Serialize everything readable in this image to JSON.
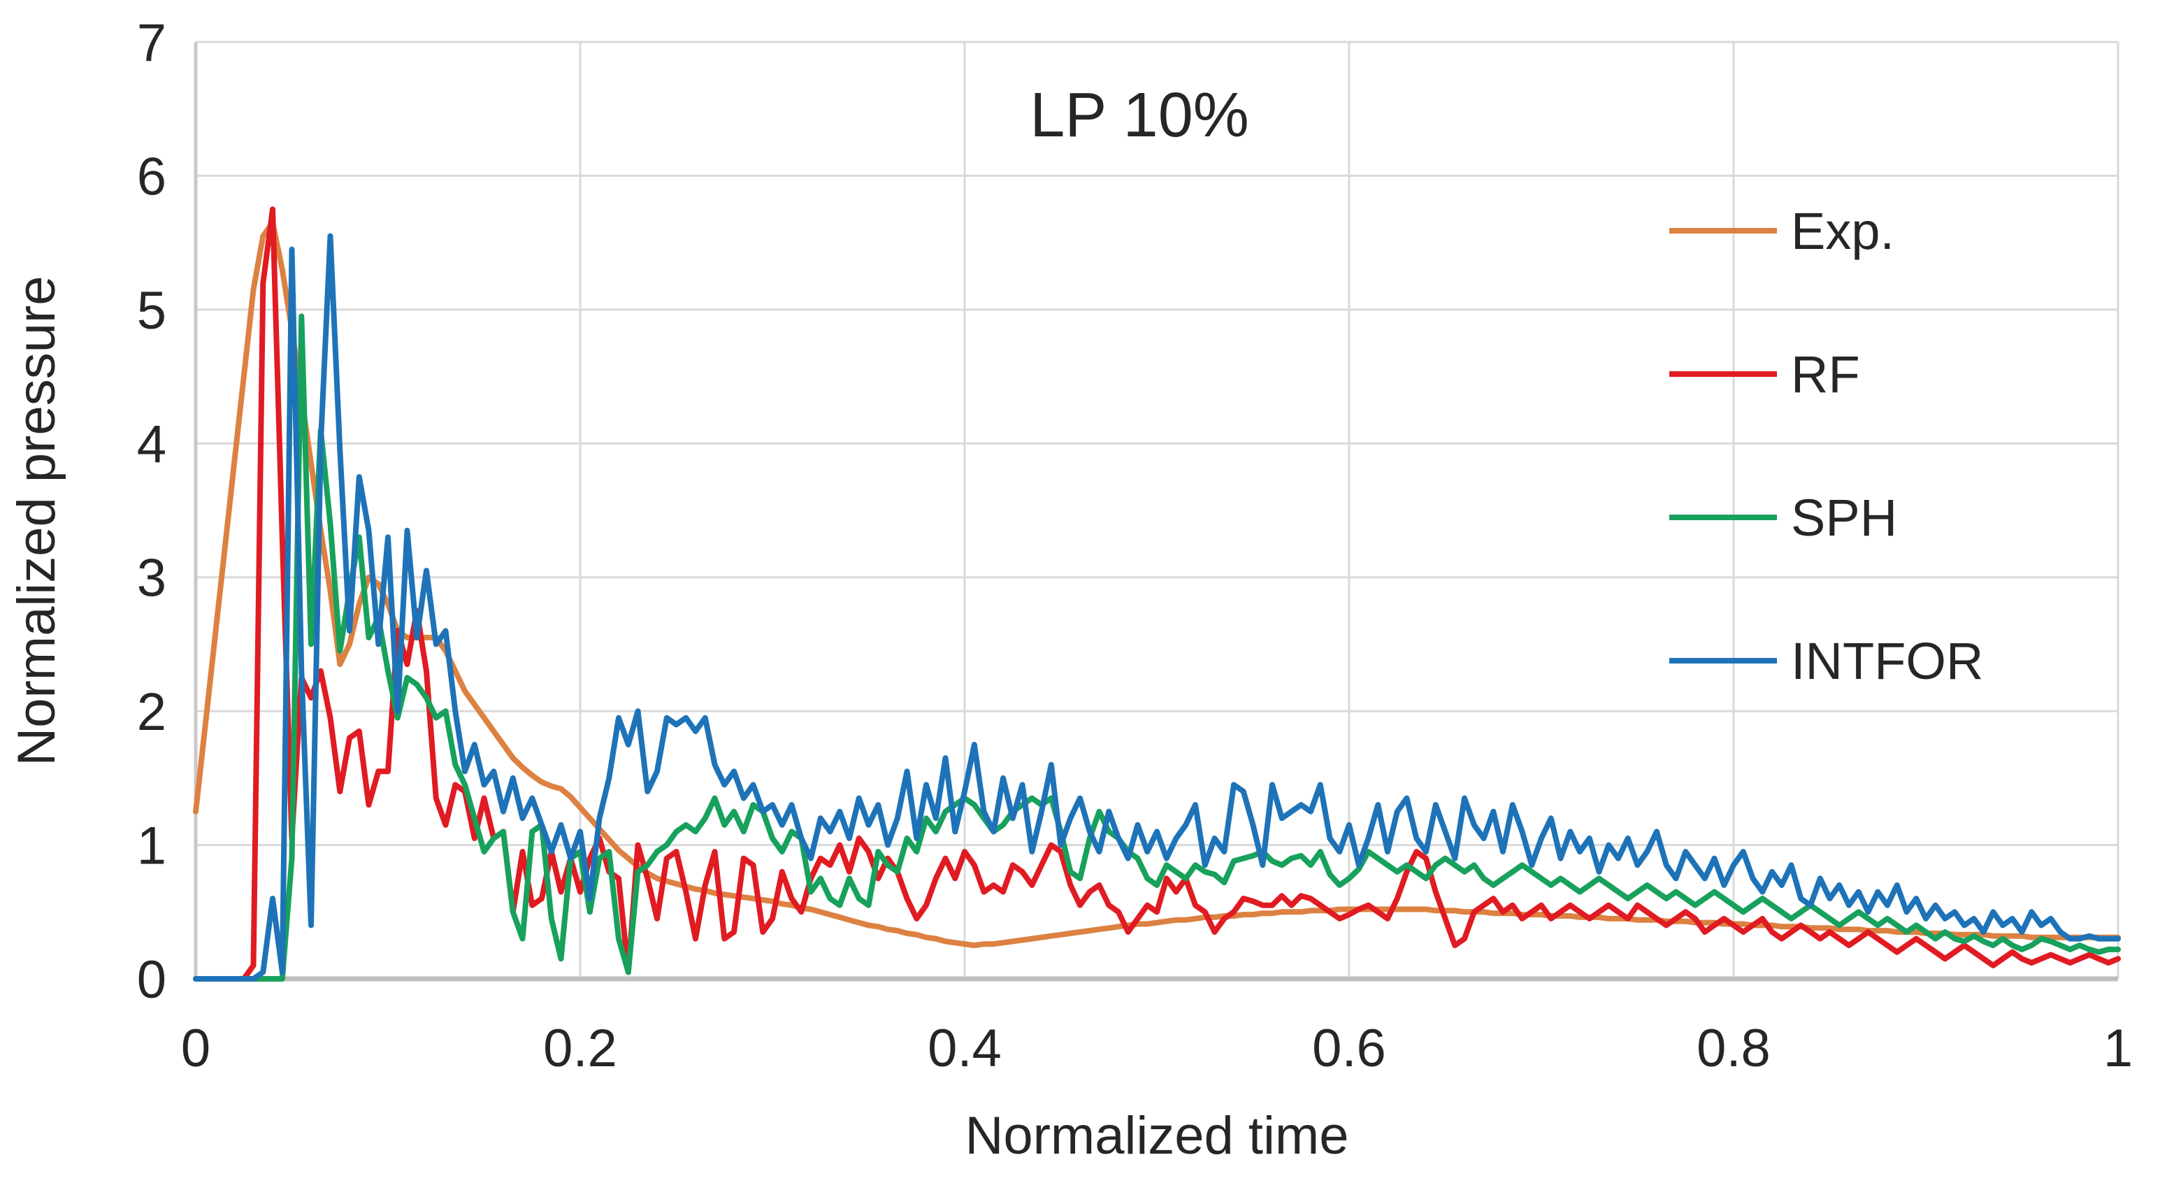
{
  "chart_data": {
    "type": "line",
    "title": "LP 10%",
    "xlabel": "Normalized time",
    "ylabel": "Normalized pressure",
    "xlim": [
      0,
      1
    ],
    "ylim": [
      0,
      7
    ],
    "x_ticks": [
      0,
      0.2,
      0.4,
      0.6,
      0.8,
      1
    ],
    "x_tick_labels": [
      "0",
      "0.2",
      "0.4",
      "0.6",
      "0.8",
      "1"
    ],
    "y_ticks": [
      0,
      1,
      2,
      3,
      4,
      5,
      6,
      7
    ],
    "y_tick_labels": [
      "0",
      "1",
      "2",
      "3",
      "4",
      "5",
      "6",
      "7"
    ],
    "grid": true,
    "legend_position": "right-inside",
    "x0": 0,
    "dx": 0.005,
    "series": [
      {
        "name": "Exp.",
        "color": "#dc8142",
        "y": [
          1.25,
          1.9,
          2.55,
          3.2,
          3.85,
          4.5,
          5.15,
          5.55,
          5.65,
          5.3,
          4.85,
          4.35,
          3.85,
          3.35,
          2.9,
          2.35,
          2.5,
          2.8,
          3.0,
          2.95,
          2.8,
          2.6,
          2.55,
          2.55,
          2.55,
          2.55,
          2.45,
          2.3,
          2.15,
          2.05,
          1.95,
          1.85,
          1.75,
          1.65,
          1.58,
          1.52,
          1.47,
          1.44,
          1.42,
          1.36,
          1.28,
          1.2,
          1.12,
          1.04,
          0.96,
          0.9,
          0.84,
          0.79,
          0.75,
          0.73,
          0.71,
          0.69,
          0.67,
          0.66,
          0.64,
          0.63,
          0.62,
          0.61,
          0.6,
          0.59,
          0.58,
          0.56,
          0.55,
          0.53,
          0.52,
          0.5,
          0.48,
          0.46,
          0.44,
          0.42,
          0.4,
          0.39,
          0.37,
          0.36,
          0.34,
          0.33,
          0.31,
          0.3,
          0.28,
          0.27,
          0.26,
          0.25,
          0.26,
          0.26,
          0.27,
          0.28,
          0.29,
          0.3,
          0.31,
          0.32,
          0.33,
          0.34,
          0.35,
          0.36,
          0.37,
          0.38,
          0.39,
          0.4,
          0.41,
          0.41,
          0.42,
          0.43,
          0.44,
          0.44,
          0.45,
          0.46,
          0.46,
          0.47,
          0.47,
          0.48,
          0.48,
          0.49,
          0.49,
          0.5,
          0.5,
          0.5,
          0.51,
          0.51,
          0.51,
          0.52,
          0.52,
          0.52,
          0.52,
          0.52,
          0.52,
          0.52,
          0.52,
          0.52,
          0.52,
          0.51,
          0.51,
          0.51,
          0.5,
          0.5,
          0.5,
          0.49,
          0.49,
          0.49,
          0.48,
          0.48,
          0.48,
          0.47,
          0.47,
          0.47,
          0.46,
          0.46,
          0.46,
          0.45,
          0.45,
          0.45,
          0.44,
          0.44,
          0.44,
          0.43,
          0.43,
          0.43,
          0.42,
          0.42,
          0.42,
          0.41,
          0.41,
          0.41,
          0.4,
          0.4,
          0.4,
          0.39,
          0.39,
          0.39,
          0.38,
          0.38,
          0.38,
          0.37,
          0.37,
          0.37,
          0.36,
          0.36,
          0.36,
          0.35,
          0.35,
          0.35,
          0.34,
          0.34,
          0.34,
          0.33,
          0.33,
          0.33,
          0.33,
          0.32,
          0.32,
          0.32,
          0.32,
          0.31,
          0.31,
          0.31,
          0.31,
          0.31,
          0.31,
          0.31,
          0.31,
          0.31,
          0.31
        ]
      },
      {
        "name": "RF",
        "color": "#e01b22",
        "y": [
          0,
          0,
          0,
          0,
          0,
          0,
          0.1,
          5.2,
          5.75,
          3.3,
          1.05,
          2.25,
          2.1,
          2.3,
          1.95,
          1.4,
          1.8,
          1.85,
          1.3,
          1.55,
          1.55,
          2.6,
          2.35,
          2.75,
          2.3,
          1.35,
          1.15,
          1.45,
          1.4,
          1.05,
          1.35,
          1.05,
          1.1,
          0.5,
          0.95,
          0.55,
          0.6,
          0.95,
          0.65,
          0.9,
          0.65,
          0.9,
          1.05,
          0.8,
          0.75,
          0.05,
          1.0,
          0.75,
          0.45,
          0.9,
          0.95,
          0.65,
          0.3,
          0.7,
          0.95,
          0.3,
          0.35,
          0.9,
          0.85,
          0.35,
          0.45,
          0.8,
          0.6,
          0.5,
          0.75,
          0.9,
          0.85,
          1.0,
          0.8,
          1.05,
          0.95,
          0.75,
          0.9,
          0.8,
          0.6,
          0.45,
          0.55,
          0.75,
          0.9,
          0.75,
          0.95,
          0.85,
          0.65,
          0.7,
          0.65,
          0.85,
          0.8,
          0.7,
          0.85,
          1.0,
          0.95,
          0.7,
          0.55,
          0.65,
          0.7,
          0.55,
          0.5,
          0.35,
          0.45,
          0.55,
          0.5,
          0.75,
          0.65,
          0.75,
          0.55,
          0.5,
          0.35,
          0.45,
          0.5,
          0.6,
          0.58,
          0.55,
          0.55,
          0.62,
          0.55,
          0.62,
          0.6,
          0.55,
          0.5,
          0.45,
          0.48,
          0.52,
          0.55,
          0.5,
          0.45,
          0.6,
          0.8,
          0.95,
          0.9,
          0.65,
          0.45,
          0.25,
          0.3,
          0.5,
          0.55,
          0.6,
          0.5,
          0.55,
          0.45,
          0.5,
          0.55,
          0.45,
          0.5,
          0.55,
          0.5,
          0.45,
          0.5,
          0.55,
          0.5,
          0.45,
          0.55,
          0.5,
          0.45,
          0.4,
          0.45,
          0.5,
          0.45,
          0.35,
          0.4,
          0.45,
          0.4,
          0.35,
          0.4,
          0.45,
          0.35,
          0.3,
          0.35,
          0.4,
          0.35,
          0.3,
          0.35,
          0.3,
          0.25,
          0.3,
          0.35,
          0.3,
          0.25,
          0.2,
          0.25,
          0.3,
          0.25,
          0.2,
          0.15,
          0.2,
          0.25,
          0.2,
          0.15,
          0.1,
          0.15,
          0.2,
          0.15,
          0.12,
          0.15,
          0.18,
          0.15,
          0.12,
          0.15,
          0.18,
          0.15,
          0.12,
          0.15
        ]
      },
      {
        "name": "SPH",
        "color": "#17a15c",
        "y": [
          0,
          0,
          0,
          0,
          0,
          0,
          0,
          0,
          0,
          0,
          0.9,
          4.95,
          2.5,
          4.1,
          3.4,
          2.45,
          2.9,
          3.3,
          2.55,
          2.7,
          2.3,
          1.95,
          2.25,
          2.2,
          2.1,
          1.95,
          2.0,
          1.6,
          1.45,
          1.2,
          0.95,
          1.05,
          1.1,
          0.5,
          0.3,
          1.1,
          1.15,
          0.45,
          0.15,
          0.9,
          0.95,
          0.5,
          0.9,
          0.95,
          0.3,
          0.05,
          0.8,
          0.85,
          0.95,
          1.0,
          1.1,
          1.15,
          1.1,
          1.2,
          1.35,
          1.15,
          1.25,
          1.1,
          1.3,
          1.25,
          1.05,
          0.95,
          1.1,
          1.05,
          0.65,
          0.75,
          0.6,
          0.55,
          0.75,
          0.6,
          0.55,
          0.95,
          0.85,
          0.8,
          1.05,
          0.95,
          1.2,
          1.1,
          1.25,
          1.3,
          1.35,
          1.3,
          1.2,
          1.1,
          1.15,
          1.25,
          1.3,
          1.35,
          1.3,
          1.35,
          1.1,
          0.8,
          0.75,
          1.05,
          1.25,
          1.1,
          1.05,
          0.95,
          0.9,
          0.75,
          0.7,
          0.85,
          0.8,
          0.75,
          0.85,
          0.8,
          0.78,
          0.72,
          0.88,
          0.9,
          0.92,
          0.95,
          0.88,
          0.85,
          0.9,
          0.92,
          0.85,
          0.95,
          0.78,
          0.7,
          0.75,
          0.82,
          0.95,
          0.9,
          0.85,
          0.8,
          0.85,
          0.8,
          0.75,
          0.85,
          0.9,
          0.85,
          0.8,
          0.85,
          0.75,
          0.7,
          0.75,
          0.8,
          0.85,
          0.8,
          0.75,
          0.7,
          0.75,
          0.7,
          0.65,
          0.7,
          0.75,
          0.7,
          0.65,
          0.6,
          0.65,
          0.7,
          0.65,
          0.6,
          0.65,
          0.6,
          0.55,
          0.6,
          0.65,
          0.6,
          0.55,
          0.5,
          0.55,
          0.6,
          0.55,
          0.5,
          0.45,
          0.5,
          0.55,
          0.5,
          0.45,
          0.4,
          0.45,
          0.5,
          0.45,
          0.4,
          0.45,
          0.4,
          0.35,
          0.4,
          0.35,
          0.3,
          0.35,
          0.3,
          0.28,
          0.32,
          0.28,
          0.25,
          0.3,
          0.25,
          0.22,
          0.25,
          0.3,
          0.28,
          0.25,
          0.22,
          0.25,
          0.22,
          0.2,
          0.22,
          0.22
        ]
      },
      {
        "name": "INTFOR",
        "color": "#1e73b8",
        "y": [
          0,
          0,
          0,
          0,
          0,
          0,
          0,
          0.05,
          0.6,
          0.05,
          5.45,
          2.3,
          0.4,
          4.0,
          5.55,
          3.95,
          2.6,
          3.75,
          3.35,
          2.5,
          3.3,
          2.0,
          3.35,
          2.55,
          3.05,
          2.5,
          2.6,
          2.0,
          1.55,
          1.75,
          1.45,
          1.55,
          1.25,
          1.5,
          1.2,
          1.35,
          1.15,
          0.95,
          1.15,
          0.9,
          1.1,
          0.6,
          1.2,
          1.5,
          1.95,
          1.75,
          2.0,
          1.4,
          1.55,
          1.95,
          1.9,
          1.95,
          1.85,
          1.95,
          1.6,
          1.45,
          1.55,
          1.35,
          1.45,
          1.25,
          1.3,
          1.15,
          1.3,
          1.05,
          0.9,
          1.2,
          1.1,
          1.25,
          1.05,
          1.35,
          1.15,
          1.3,
          1.0,
          1.2,
          1.55,
          1.05,
          1.45,
          1.2,
          1.65,
          1.1,
          1.4,
          1.75,
          1.25,
          1.1,
          1.5,
          1.2,
          1.45,
          0.95,
          1.25,
          1.6,
          1.0,
          1.2,
          1.35,
          1.1,
          0.95,
          1.25,
          1.05,
          0.9,
          1.15,
          0.95,
          1.1,
          0.9,
          1.05,
          1.15,
          1.3,
          0.85,
          1.05,
          0.95,
          1.45,
          1.4,
          1.15,
          0.85,
          1.45,
          1.2,
          1.25,
          1.3,
          1.25,
          1.45,
          1.05,
          0.95,
          1.15,
          0.85,
          1.05,
          1.3,
          0.95,
          1.25,
          1.35,
          1.05,
          0.95,
          1.3,
          1.1,
          0.9,
          1.35,
          1.15,
          1.05,
          1.25,
          0.95,
          1.3,
          1.1,
          0.85,
          1.05,
          1.2,
          0.9,
          1.1,
          0.95,
          1.05,
          0.8,
          1.0,
          0.9,
          1.05,
          0.85,
          0.95,
          1.1,
          0.85,
          0.75,
          0.95,
          0.85,
          0.75,
          0.9,
          0.7,
          0.85,
          0.95,
          0.75,
          0.65,
          0.8,
          0.7,
          0.85,
          0.6,
          0.55,
          0.75,
          0.6,
          0.7,
          0.55,
          0.65,
          0.5,
          0.65,
          0.55,
          0.7,
          0.5,
          0.6,
          0.45,
          0.55,
          0.45,
          0.5,
          0.4,
          0.45,
          0.35,
          0.5,
          0.4,
          0.45,
          0.35,
          0.5,
          0.4,
          0.45,
          0.35,
          0.3,
          0.3,
          0.32,
          0.3,
          0.3,
          0.3
        ]
      }
    ]
  }
}
